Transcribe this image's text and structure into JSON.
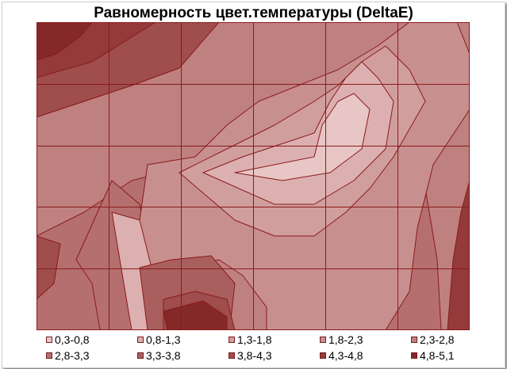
{
  "chart_data": {
    "type": "heatmap",
    "title": "Равномерность цвет.температуры (DeltaE)",
    "grid": true,
    "legend_position": "bottom",
    "grid_columns": 6,
    "grid_rows": 5,
    "levels": [
      {
        "label": "0,3-0,8",
        "color": "#e9c6c6"
      },
      {
        "label": "0,8-1,3",
        "color": "#dcb0b0"
      },
      {
        "label": "1,3-1,8",
        "color": "#d19e9e"
      },
      {
        "label": "1,8-2,3",
        "color": "#c88f8f"
      },
      {
        "label": "2,3-2,8",
        "color": "#bf8080"
      },
      {
        "label": "2,8-3,3",
        "color": "#b56f6f"
      },
      {
        "label": "3,3-3,8",
        "color": "#aa5f5f"
      },
      {
        "label": "3,8-4,3",
        "color": "#9f4d4d"
      },
      {
        "label": "4,3-4,8",
        "color": "#943a3a"
      },
      {
        "label": "4,8-5,1",
        "color": "#852828"
      }
    ],
    "contour_line_color": "#8b1a1a"
  }
}
